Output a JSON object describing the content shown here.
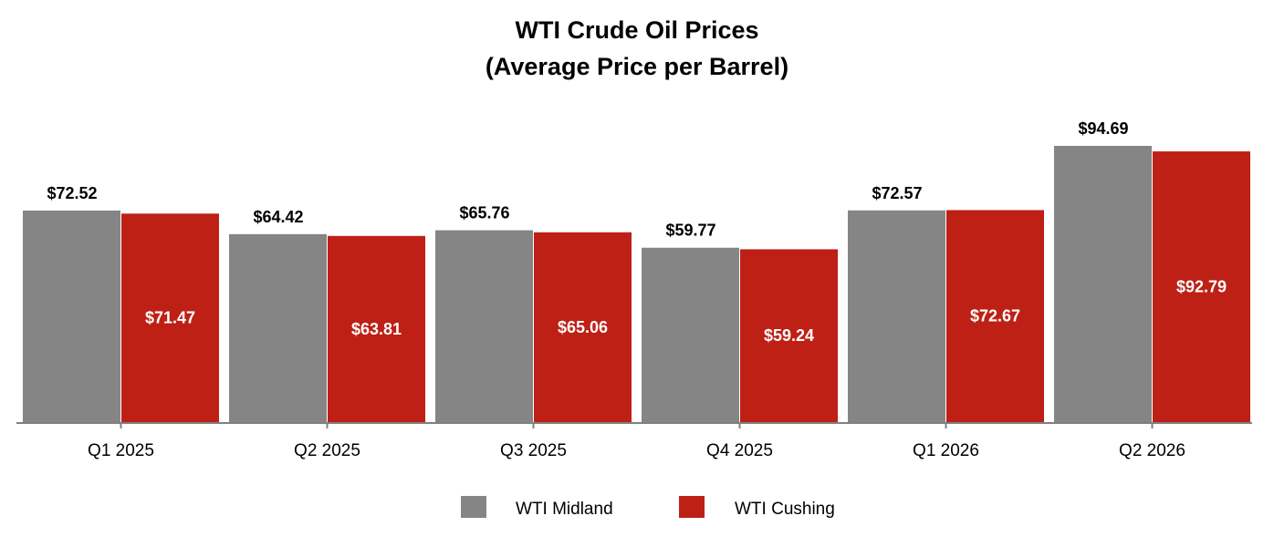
{
  "chart_data": {
    "type": "bar",
    "title": "WTI Crude Oil Prices",
    "subtitle": "(Average Price per Barrel)",
    "categories": [
      "Q1 2025",
      "Q2 2025",
      "Q3 2025",
      "Q4 2025",
      "Q1 2026",
      "Q2 2026"
    ],
    "series": [
      {
        "name": "WTI Midland",
        "color": "#858585",
        "values": [
          72.52,
          64.42,
          65.76,
          59.77,
          72.57,
          94.69
        ],
        "labels": [
          "$72.52",
          "$64.42",
          "$65.76",
          "$59.77",
          "$72.57",
          "$94.69"
        ],
        "label_position": "outside-top"
      },
      {
        "name": "WTI Cushing",
        "color": "#BE2016",
        "values": [
          71.47,
          63.81,
          65.06,
          59.24,
          72.67,
          92.79
        ],
        "labels": [
          "$71.47",
          "$63.81",
          "$65.06",
          "$59.24",
          "$72.67",
          "$92.79"
        ],
        "label_position": "inside-center"
      }
    ],
    "ylim": [
      0,
      100
    ],
    "xlabel": "",
    "ylabel": "",
    "grid": false,
    "legend_position": "bottom-center"
  }
}
